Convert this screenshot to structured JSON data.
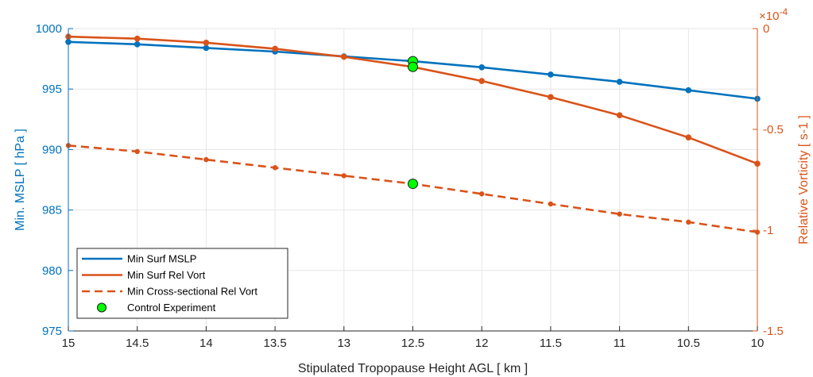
{
  "chart_data": {
    "type": "line",
    "title": "",
    "xlabel": "Stipulated Tropopause Height AGL [ km ]",
    "ylabel_left": "Min. MSLP [ hPa ]",
    "ylabel_right": "Relative Vorticity [ s-1 ]",
    "right_axis_exponent_label": "×10",
    "right_axis_exponent_power": "-4",
    "x_reversed": true,
    "xlim": [
      10,
      15
    ],
    "ylim_left": [
      975,
      1000
    ],
    "ylim_right": [
      -1.5,
      0
    ],
    "x_ticks": [
      "15",
      "14.5",
      "14",
      "13.5",
      "13",
      "12.5",
      "12",
      "11.5",
      "11",
      "10.5",
      "10"
    ],
    "y_ticks_left": [
      "975",
      "980",
      "985",
      "990",
      "995",
      "1000"
    ],
    "y_ticks_right": [
      "-1.5",
      "-1",
      "-0.5",
      "0"
    ],
    "grid": true,
    "legend_position": "bottom-left",
    "colors": {
      "blue": "#0072BD",
      "orange": "#D95319",
      "green": "#00FF00"
    },
    "x": [
      15,
      14.5,
      14,
      13.5,
      13,
      12.5,
      12,
      11.5,
      11,
      10.5,
      10
    ],
    "series": [
      {
        "name": "Min Surf MSLP",
        "axis": "left",
        "style": "solid",
        "values": [
          998.9,
          998.7,
          998.4,
          998.1,
          997.7,
          997.3,
          996.8,
          996.2,
          995.6,
          994.9,
          994.2
        ]
      },
      {
        "name": "Min Surf Rel Vort",
        "axis": "right",
        "style": "solid",
        "values": [
          -0.04,
          -0.05,
          -0.07,
          -0.1,
          -0.14,
          -0.19,
          -0.26,
          -0.34,
          -0.43,
          -0.54,
          -0.67
        ]
      },
      {
        "name": "Min Cross-sectional Rel Vort",
        "axis": "right",
        "style": "dashed",
        "values": [
          -0.58,
          -0.61,
          -0.65,
          -0.69,
          -0.73,
          -0.77,
          -0.82,
          -0.87,
          -0.92,
          -0.96,
          -1.01
        ]
      }
    ],
    "control_experiment": {
      "name": "Control Experiment",
      "x": 12.5,
      "points": [
        {
          "axis": "left",
          "value": 997.3
        },
        {
          "axis": "right",
          "value": -0.19
        },
        {
          "axis": "right",
          "value": -0.77
        }
      ]
    }
  }
}
